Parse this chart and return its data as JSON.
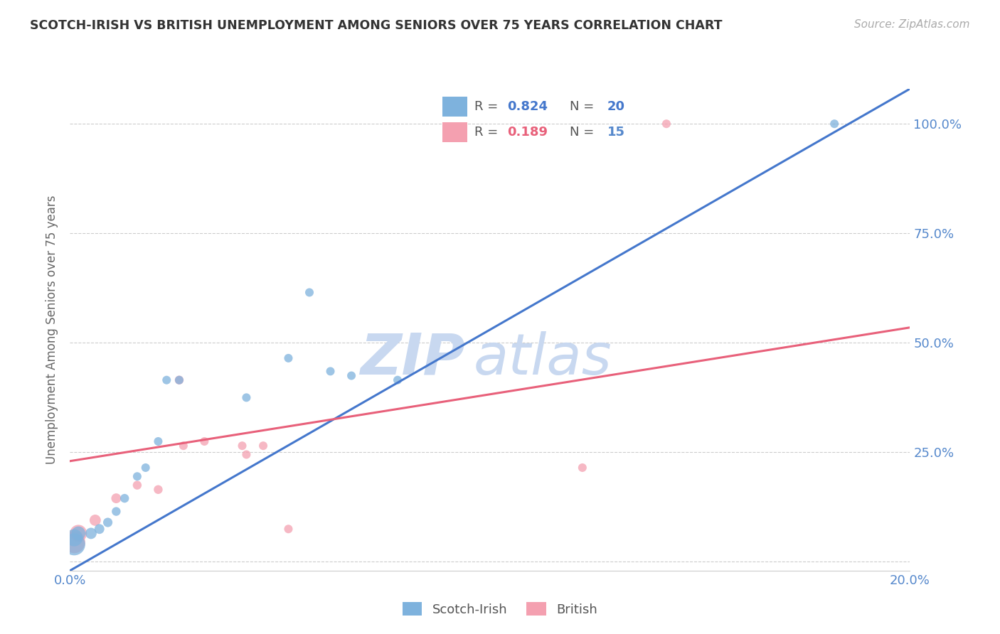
{
  "title": "SCOTCH-IRISH VS BRITISH UNEMPLOYMENT AMONG SENIORS OVER 75 YEARS CORRELATION CHART",
  "source": "Source: ZipAtlas.com",
  "ylabel": "Unemployment Among Seniors over 75 years",
  "xlim": [
    0.0,
    0.2
  ],
  "ylim": [
    -0.02,
    1.08
  ],
  "yticks": [
    0.0,
    0.25,
    0.5,
    0.75,
    1.0
  ],
  "ytick_labels": [
    "",
    "25.0%",
    "50.0%",
    "75.0%",
    "100.0%"
  ],
  "xticks": [
    0.0,
    0.05,
    0.1,
    0.15,
    0.2
  ],
  "xtick_labels": [
    "0.0%",
    "",
    "",
    "",
    "20.0%"
  ],
  "scotch_irish_color": "#7EB2DD",
  "british_color": "#F4A0B0",
  "regression_blue": "#4477CC",
  "regression_pink": "#E8607A",
  "axis_label_color": "#5588CC",
  "watermark_color": "#C8D8F0",
  "scotch_irish_R": 0.824,
  "scotch_irish_N": 20,
  "british_R": 0.189,
  "british_N": 15,
  "scotch_irish_x": [
    0.001,
    0.001,
    0.002,
    0.005,
    0.007,
    0.009,
    0.011,
    0.013,
    0.016,
    0.018,
    0.021,
    0.023,
    0.026,
    0.042,
    0.052,
    0.057,
    0.062,
    0.067,
    0.078,
    0.182
  ],
  "scotch_irish_y": [
    0.04,
    0.055,
    0.065,
    0.065,
    0.075,
    0.09,
    0.115,
    0.145,
    0.195,
    0.215,
    0.275,
    0.415,
    0.415,
    0.375,
    0.465,
    0.615,
    0.435,
    0.425,
    0.415,
    1.0
  ],
  "scotch_irish_sizes": [
    500,
    300,
    200,
    130,
    100,
    90,
    80,
    80,
    75,
    75,
    75,
    75,
    75,
    75,
    75,
    75,
    75,
    75,
    75,
    75
  ],
  "british_x": [
    0.001,
    0.002,
    0.006,
    0.011,
    0.016,
    0.021,
    0.026,
    0.027,
    0.032,
    0.041,
    0.042,
    0.046,
    0.052,
    0.122,
    0.142
  ],
  "british_y": [
    0.045,
    0.065,
    0.095,
    0.145,
    0.175,
    0.165,
    0.415,
    0.265,
    0.275,
    0.265,
    0.245,
    0.265,
    0.075,
    0.215,
    1.0
  ],
  "british_sizes": [
    500,
    300,
    130,
    100,
    80,
    80,
    80,
    75,
    75,
    75,
    75,
    75,
    75,
    75,
    75
  ],
  "blue_line_x0": 0.0,
  "blue_line_y0": -0.02,
  "blue_line_x1": 0.2,
  "blue_line_y1": 1.08,
  "pink_line_x0": 0.0,
  "pink_line_y0": 0.23,
  "pink_line_x1": 0.2,
  "pink_line_y1": 0.535
}
